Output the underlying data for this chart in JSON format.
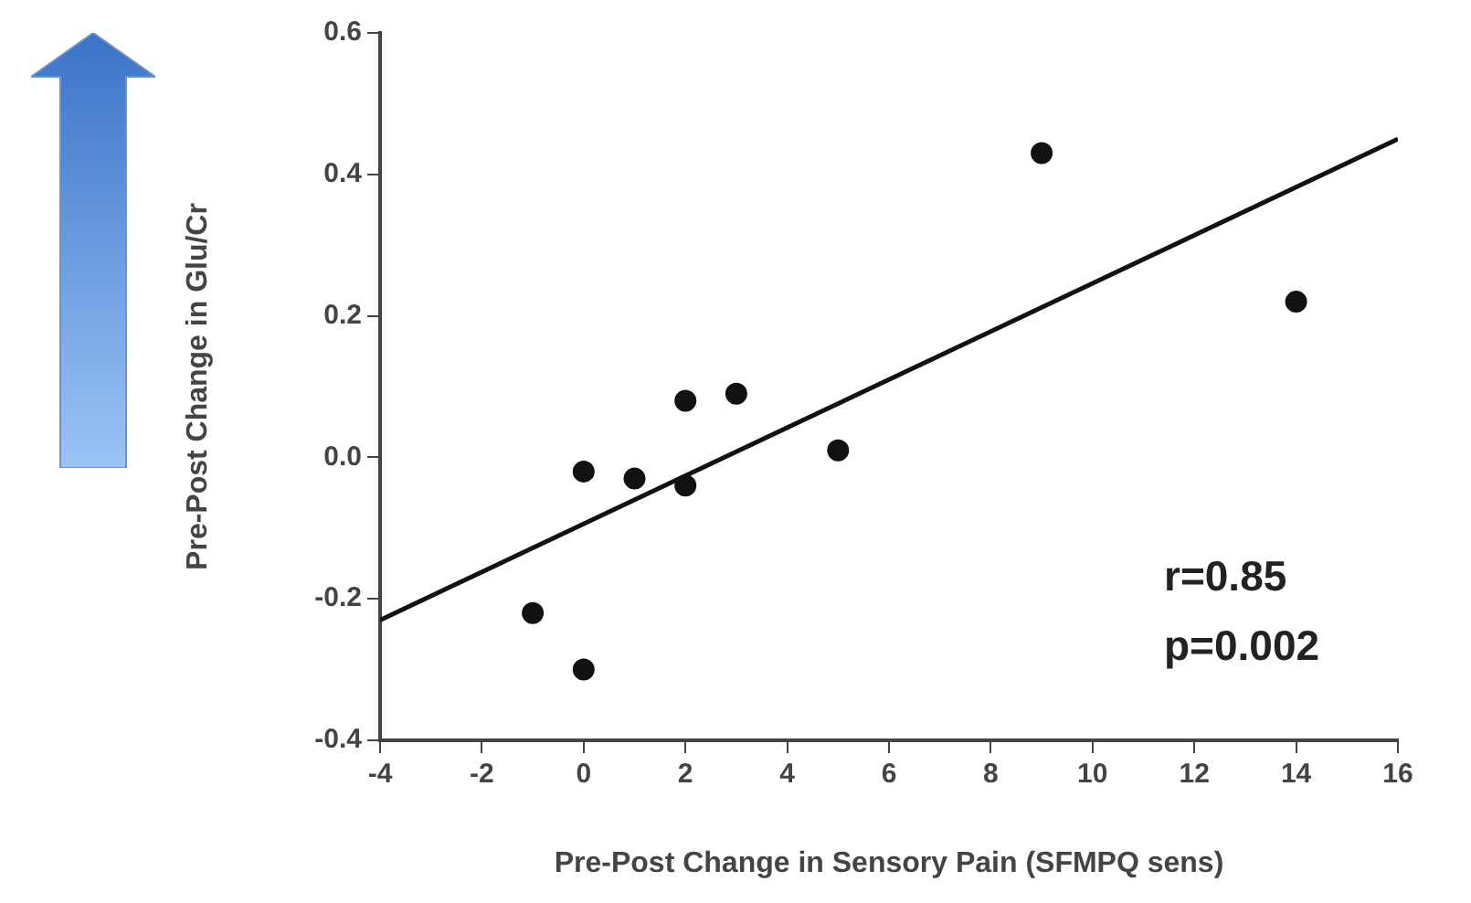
{
  "chart_data": {
    "type": "scatter",
    "xlabel": "Pre-Post Change in Sensory Pain (SFMPQ sens)",
    "ylabel": "Pre-Post Change in Glu/Cr",
    "xlim": [
      -4,
      16
    ],
    "xticks": [
      -4,
      -2,
      0,
      2,
      4,
      6,
      8,
      10,
      12,
      14,
      16
    ],
    "ylim": [
      -0.4,
      0.6
    ],
    "yticks": [
      {
        "value": -0.4,
        "label": "-0.4"
      },
      {
        "value": -0.2,
        "label": "-0.2"
      },
      {
        "value": 0,
        "label": "0.0"
      },
      {
        "value": 0.2,
        "label": "0.2"
      },
      {
        "value": 0.4,
        "label": "0.4"
      },
      {
        "value": 0.6,
        "label": "0.6"
      }
    ],
    "grid": false,
    "legend": false,
    "series": [
      {
        "marker": "circle",
        "color": "#111111",
        "x": [
          -1,
          0,
          0,
          1,
          2,
          2,
          3,
          5,
          9,
          14
        ],
        "values": [
          -0.22,
          -0.3,
          -0.02,
          -0.03,
          -0.04,
          0.08,
          0.09,
          0.01,
          0.43,
          0.22
        ]
      },
      {
        "type": "line",
        "color": "#111111",
        "x": [
          -4,
          16
        ],
        "values": [
          -0.23,
          0.45
        ]
      }
    ],
    "annotations": [
      "r=0.85",
      "p=0.002"
    ]
  }
}
